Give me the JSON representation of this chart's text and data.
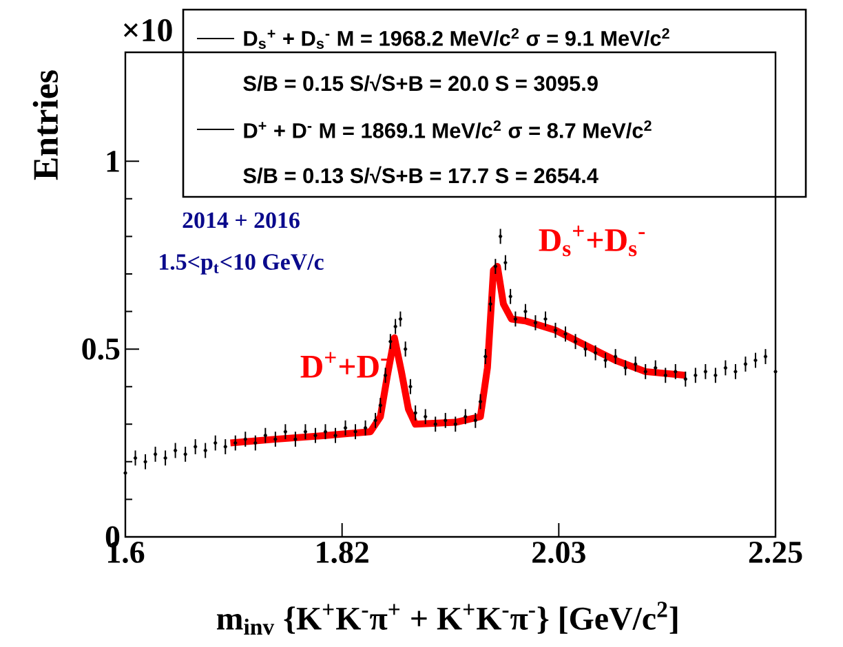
{
  "chart_data": {
    "type": "scatter",
    "xlabel": "m$_{inv}$ {K$^{+}$K$^{-}$π$^{+}$ + K$^{+}$K$^{-}$π$^{-}$} [GeV/c$^{2}$]",
    "ylabel": "Entries",
    "xlim": [
      1.6,
      2.25
    ],
    "xticks": [
      1.6,
      {
        "value": 1.81667,
        "label": "1.82"
      },
      {
        "value": 2.03333,
        "label": "2.03"
      },
      2.25
    ],
    "ylim": [
      0,
      1.29
    ],
    "yticks": [
      0,
      0.5,
      1
    ],
    "annotations": [
      "×10",
      "D$_{s}$$^{+}$ + D$_{s}$$^{-}$ M = 1968.2 MeV/c$^{2}$  σ = 9.1 MeV/c$^{2}$",
      "S/B = 0.15  S/√S+B = 20.0 S = 3095.9",
      "D$^{+}$ + D$^{-}$ M = 1869.1 MeV/c$^{2}$  σ = 8.7 MeV/c$^{2}$",
      "S/B = 0.13  S/√S+B = 17.7 S = 2654.4",
      "2014 + 2016",
      "1.5<p$_{t}$<10 GeV/c",
      "D$^{+}$+D$^{-}$",
      "D$_{s}$$^{+}$+D$_{s}$$^{-}$"
    ],
    "series": [
      {
        "color": "#000000",
        "marker": "circle",
        "x": [
          1.6,
          1.61,
          1.62,
          1.63,
          1.64,
          1.65,
          1.66,
          1.67,
          1.68,
          1.69,
          1.7,
          1.71,
          1.72,
          1.73,
          1.74,
          1.75,
          1.76,
          1.77,
          1.78,
          1.79,
          1.8,
          1.81,
          1.82,
          1.83,
          1.84,
          1.85,
          1.855,
          1.86,
          1.865,
          1.87,
          1.875,
          1.88,
          1.885,
          1.89,
          1.9,
          1.91,
          1.92,
          1.93,
          1.94,
          1.95,
          1.955,
          1.96,
          1.965,
          1.97,
          1.975,
          1.98,
          1.985,
          1.99,
          2.0,
          2.01,
          2.02,
          2.03,
          2.04,
          2.05,
          2.06,
          2.07,
          2.08,
          2.09,
          2.1,
          2.11,
          2.12,
          2.13,
          2.14,
          2.15,
          2.16,
          2.17,
          2.18,
          2.19,
          2.2,
          2.21,
          2.22,
          2.23,
          2.24,
          2.25
        ],
        "values": [
          0.17,
          0.21,
          0.2,
          0.22,
          0.21,
          0.23,
          0.22,
          0.24,
          0.23,
          0.25,
          0.24,
          0.25,
          0.26,
          0.25,
          0.27,
          0.26,
          0.28,
          0.26,
          0.28,
          0.27,
          0.28,
          0.27,
          0.29,
          0.28,
          0.29,
          0.31,
          0.35,
          0.43,
          0.52,
          0.56,
          0.58,
          0.5,
          0.4,
          0.33,
          0.32,
          0.3,
          0.31,
          0.3,
          0.32,
          0.31,
          0.36,
          0.48,
          0.62,
          0.72,
          0.8,
          0.73,
          0.64,
          0.58,
          0.6,
          0.57,
          0.58,
          0.55,
          0.54,
          0.52,
          0.5,
          0.49,
          0.47,
          0.48,
          0.45,
          0.46,
          0.44,
          0.45,
          0.43,
          0.44,
          0.42,
          0.43,
          0.44,
          0.43,
          0.45,
          0.44,
          0.46,
          0.47,
          0.48,
          0.44
        ],
        "errors": [
          0.02,
          0.02,
          0.02,
          0.02,
          0.02,
          0.02,
          0.02,
          0.02,
          0.02,
          0.02,
          0.02,
          0.02,
          0.02,
          0.02,
          0.02,
          0.02,
          0.02,
          0.02,
          0.02,
          0.02,
          0.02,
          0.02,
          0.02,
          0.02,
          0.02,
          0.02,
          0.02,
          0.02,
          0.02,
          0.02,
          0.02,
          0.02,
          0.02,
          0.02,
          0.02,
          0.02,
          0.02,
          0.02,
          0.02,
          0.02,
          0.02,
          0.02,
          0.02,
          0.02,
          0.02,
          0.02,
          0.02,
          0.02,
          0.02,
          0.02,
          0.02,
          0.02,
          0.02,
          0.02,
          0.02,
          0.02,
          0.02,
          0.02,
          0.02,
          0.02,
          0.02,
          0.02,
          0.02,
          0.02,
          0.02,
          0.02,
          0.02,
          0.02,
          0.02,
          0.02,
          0.02,
          0.02,
          0.02,
          0.02
        ]
      },
      {
        "type": "line",
        "color": "#ff0000",
        "x": [
          1.705,
          1.75,
          1.8,
          1.845,
          1.855,
          1.862,
          1.869,
          1.876,
          1.883,
          1.89,
          1.93,
          1.955,
          1.962,
          1.968,
          1.972,
          1.978,
          1.986,
          2.0,
          2.03,
          2.06,
          2.09,
          2.12,
          2.16
        ],
        "values": [
          0.25,
          0.26,
          0.27,
          0.28,
          0.32,
          0.43,
          0.53,
          0.44,
          0.34,
          0.3,
          0.305,
          0.32,
          0.45,
          0.71,
          0.72,
          0.62,
          0.58,
          0.575,
          0.55,
          0.51,
          0.47,
          0.44,
          0.43
        ]
      }
    ]
  }
}
